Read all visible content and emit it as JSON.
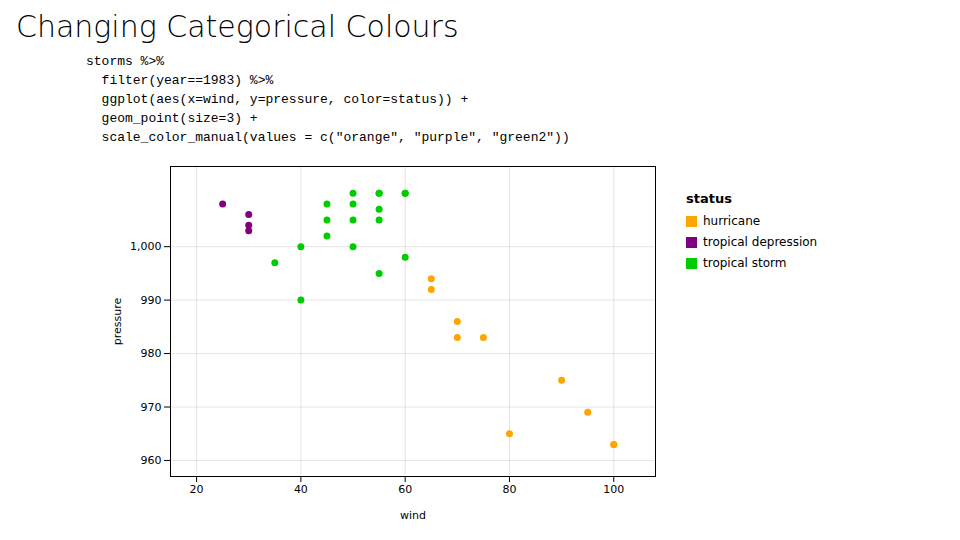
{
  "chart_data": {
    "type": "scatter",
    "title": "Changing Categorical Colours",
    "annotations": [
      "storms %>%",
      "  filter(year==1983) %>%",
      "  ggplot(aes(x=wind, y=pressure, color=status)) +",
      "  geom_point(size=3) +",
      "  scale_color_manual(values = c(\"orange\", \"purple\", \"green2\"))"
    ],
    "xlabel": "wind",
    "ylabel": "pressure",
    "legend_title": "status",
    "legend": "right",
    "grid": true,
    "series": [
      {
        "name": "hurricane",
        "color": "orange",
        "x": [
          65,
          65,
          70,
          70,
          75,
          80,
          90,
          95,
          100,
          100
        ],
        "y": [
          994,
          992,
          986,
          983,
          983,
          965,
          975,
          969,
          963,
          963
        ]
      },
      {
        "name": "tropical depression",
        "color": "purple",
        "x": [
          25,
          30,
          30,
          30
        ],
        "y": [
          1008,
          1006,
          1004,
          1003
        ]
      },
      {
        "name": "tropical storm",
        "color": "#00cc00",
        "x": [
          35,
          40,
          40,
          45,
          45,
          45,
          50,
          50,
          50,
          50,
          55,
          55,
          55,
          55,
          55,
          60,
          60,
          60
        ],
        "y": [
          997,
          1000,
          990,
          1008,
          1005,
          1002,
          1010,
          1008,
          1005,
          1000,
          1010,
          1010,
          1007,
          1005,
          995,
          1010,
          1010,
          998
        ]
      }
    ],
    "xlim": [
      15,
      108
    ],
    "ylim": [
      957,
      1015
    ],
    "xticks": [
      20,
      40,
      60,
      80,
      100
    ],
    "yticks": [
      960,
      970,
      980,
      990,
      1000
    ]
  }
}
